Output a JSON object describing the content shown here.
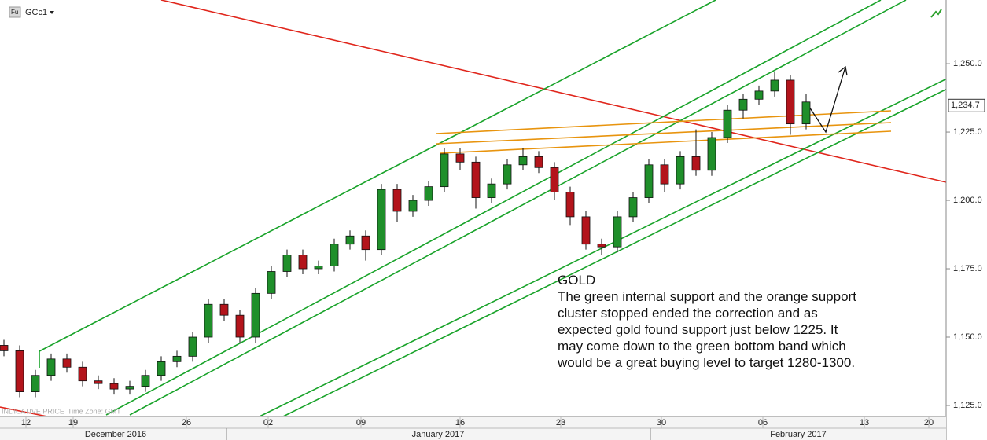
{
  "chart_data": {
    "type": "candlestick",
    "symbol": "GCc1",
    "footer": "INDICATIVE PRICE",
    "timezone": "Time Zone: GMT",
    "months": [
      "December 2016",
      "January 2017",
      "February 2017"
    ],
    "annotation": [
      "GOLD",
      "The green internal support and the orange support",
      "cluster stopped ended the correction and as",
      "expected gold found support just below 1225. It",
      "may come down to the green bottom band which",
      "would be a great buying level to target 1280-1300."
    ],
    "last_price": {
      "value": 1234.7,
      "label": "1,234.7"
    },
    "up_color": "#1f8f2a",
    "down_color": "#b3141b",
    "xlim": [
      -6.6,
      234
    ],
    "ylim": [
      1118.1,
      1273.3
    ],
    "xticks": [
      {
        "value": 0,
        "label": "12"
      },
      {
        "value": 12,
        "label": "19"
      },
      {
        "value": 40.8,
        "label": "26"
      },
      {
        "value": 61.6,
        "label": "02"
      },
      {
        "value": 85.2,
        "label": "09"
      },
      {
        "value": 110.4,
        "label": "16"
      },
      {
        "value": 136,
        "label": "23"
      },
      {
        "value": 161.6,
        "label": "30"
      },
      {
        "value": 187.4,
        "label": "06"
      },
      {
        "value": 213.2,
        "label": "13"
      },
      {
        "value": 229.6,
        "label": "20"
      }
    ],
    "yticks": [
      {
        "value": 1125,
        "label": "1,125.0"
      },
      {
        "value": 1150,
        "label": "1,150.0"
      },
      {
        "value": 1175,
        "label": "1,175.0"
      },
      {
        "value": 1200,
        "label": "1,200.0"
      },
      {
        "value": 1225,
        "label": "1,225.0"
      },
      {
        "value": 1250,
        "label": "1,250.0"
      }
    ],
    "x": [
      -5.6,
      -1.6,
      2.4,
      6.4,
      10.4,
      14.4,
      18.4,
      22.4,
      26.4,
      30.4,
      34.4,
      38.4,
      42.4,
      46.4,
      50.4,
      54.4,
      58.4,
      62.4,
      66.4,
      70.4,
      74.4,
      78.4,
      82.4,
      86.4,
      90.4,
      94.4,
      98.4,
      102.4,
      106.4,
      110.4,
      114.4,
      118.4,
      122.4,
      126.4,
      130.4,
      134.4,
      138.4,
      142.4,
      146.4,
      150.4,
      154.4,
      158.4,
      162.4,
      166.4,
      170.4,
      174.4,
      178.4,
      182.4,
      186.4,
      190.4,
      194.4,
      198.4
    ],
    "open": [
      1147,
      1145,
      1130,
      1136,
      1142,
      1139,
      1134,
      1133,
      1131,
      1132,
      1136,
      1141,
      1143,
      1150,
      1162,
      1158,
      1150,
      1166,
      1174,
      1180,
      1175,
      1176,
      1184,
      1187,
      1182,
      1204,
      1196,
      1200,
      1205,
      1217,
      1214,
      1201,
      1206,
      1213,
      1216,
      1212,
      1203,
      1194,
      1184,
      1183,
      1194,
      1201,
      1213,
      1206,
      1216,
      1211,
      1223,
      1233,
      1237,
      1240,
      1244,
      1228
    ],
    "high": [
      1149,
      1147,
      1138,
      1144,
      1144,
      1141,
      1136,
      1135,
      1134,
      1138,
      1143,
      1145,
      1152,
      1164,
      1164,
      1160,
      1168,
      1176,
      1182,
      1182,
      1178,
      1186,
      1189,
      1189,
      1206,
      1206,
      1202,
      1207,
      1219,
      1219,
      1216,
      1208,
      1215,
      1219,
      1218,
      1214,
      1205,
      1196,
      1186,
      1196,
      1203,
      1215,
      1215,
      1218,
      1226,
      1225,
      1235,
      1239,
      1242,
      1247,
      1246,
      1239
    ],
    "low": [
      1143,
      1128,
      1128,
      1134,
      1137,
      1132,
      1131,
      1129,
      1129,
      1130,
      1134,
      1139,
      1141,
      1148,
      1156,
      1148,
      1148,
      1164,
      1172,
      1173,
      1173,
      1174,
      1182,
      1178,
      1180,
      1192,
      1194,
      1198,
      1203,
      1211,
      1197,
      1199,
      1204,
      1211,
      1210,
      1200,
      1191,
      1182,
      1180,
      1181,
      1192,
      1199,
      1203,
      1204,
      1209,
      1209,
      1221,
      1230,
      1235,
      1238,
      1224,
      1226
    ],
    "close": [
      1145,
      1130,
      1136,
      1142,
      1139,
      1134,
      1133,
      1131,
      1132,
      1136,
      1141,
      1143,
      1150,
      1162,
      1158,
      1150,
      1166,
      1174,
      1180,
      1175,
      1176,
      1184,
      1187,
      1182,
      1204,
      1196,
      1200,
      1205,
      1217,
      1214,
      1201,
      1206,
      1213,
      1216,
      1212,
      1203,
      1194,
      1184,
      1183,
      1194,
      1201,
      1213,
      1206,
      1216,
      1211,
      1223,
      1233,
      1237,
      1240,
      1244,
      1228,
      1236
    ]
  }
}
